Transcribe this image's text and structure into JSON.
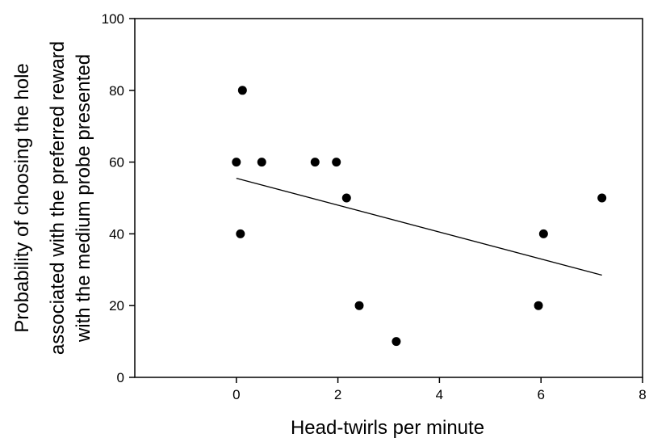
{
  "chart_data": {
    "type": "scatter",
    "title": "",
    "xlabel": "Head-twirls per minute",
    "ylabel_lines": [
      "Probability of choosing the hole",
      "associated with the preferred reward",
      "with the medium probe presented"
    ],
    "xlim": [
      -2,
      8
    ],
    "ylim": [
      0,
      100
    ],
    "x_ticks": [
      0,
      2,
      4,
      6,
      8
    ],
    "y_ticks": [
      0,
      20,
      40,
      60,
      80,
      100
    ],
    "grid": false,
    "legend": "none",
    "points": [
      {
        "x": 0.0,
        "y": 60
      },
      {
        "x": 0.08,
        "y": 40
      },
      {
        "x": 0.12,
        "y": 80
      },
      {
        "x": 0.5,
        "y": 60
      },
      {
        "x": 1.55,
        "y": 60
      },
      {
        "x": 1.97,
        "y": 60
      },
      {
        "x": 2.17,
        "y": 50
      },
      {
        "x": 2.42,
        "y": 20
      },
      {
        "x": 3.15,
        "y": 10
      },
      {
        "x": 5.95,
        "y": 20
      },
      {
        "x": 6.05,
        "y": 40
      },
      {
        "x": 7.2,
        "y": 50
      }
    ],
    "regression_line": {
      "x": [
        0.0,
        7.2
      ],
      "y": [
        55.5,
        28.5
      ]
    },
    "colors": {
      "points": "#000000",
      "line": "#000000",
      "axes": "#000000"
    }
  }
}
